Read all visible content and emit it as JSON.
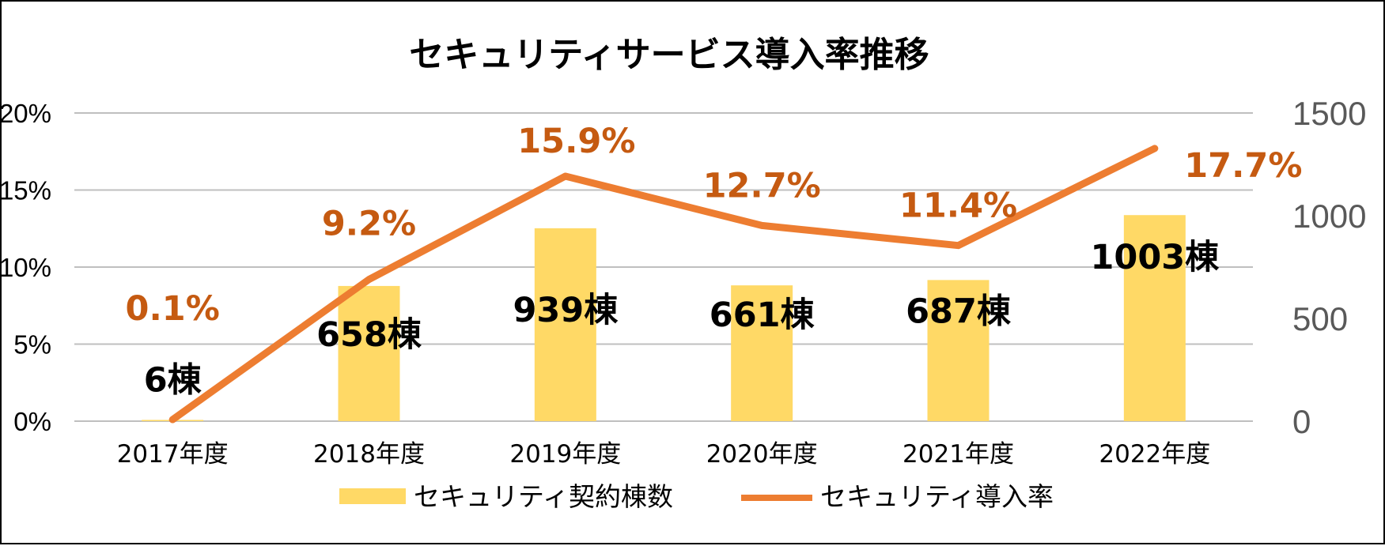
{
  "chart_data": {
    "type": "bar+line",
    "title": "セキュリティサービス導入率推移",
    "categories": [
      "2017年度",
      "2018年度",
      "2019年度",
      "2020年度",
      "2021年度",
      "2022年度"
    ],
    "series": [
      {
        "name": "セキュリティ契約棟数",
        "type": "bar",
        "axis": "right",
        "values": [
          6,
          658,
          939,
          661,
          687,
          1003
        ],
        "labels": [
          "6棟",
          "658棟",
          "939棟",
          "661棟",
          "687棟",
          "1003棟"
        ],
        "color": "#FFD966"
      },
      {
        "name": "セキュリティ導入率",
        "type": "line",
        "axis": "left",
        "values": [
          0.1,
          9.2,
          15.9,
          12.7,
          11.4,
          17.7
        ],
        "labels": [
          "0.1%",
          "9.2%",
          "15.9%",
          "12.7%",
          "11.4%",
          "17.7%"
        ],
        "color": "#ED7D31"
      }
    ],
    "left_axis": {
      "ylim": [
        0,
        20
      ],
      "ticks": [
        "0%",
        "5%",
        "10%",
        "15%",
        "20%"
      ],
      "color": "#000000"
    },
    "right_axis": {
      "ylim": [
        0,
        1500
      ],
      "ticks": [
        "0",
        "500",
        "1000",
        "1500"
      ],
      "color": "#595959"
    },
    "grid": true,
    "grid_color": "#BFBFBF",
    "legend_position": "bottom",
    "label_color": "#C55A11"
  }
}
